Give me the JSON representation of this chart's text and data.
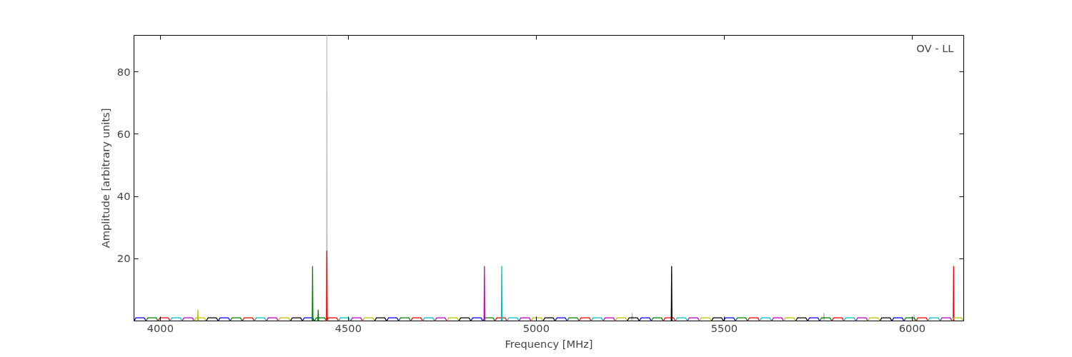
{
  "chart_data": {
    "type": "line",
    "xlabel": "Frequency [MHz]",
    "ylabel": "Amplitude [arbitrary units]",
    "annotations": [
      "OV - LL"
    ],
    "xlim": [
      3930,
      6137
    ],
    "ylim": [
      0,
      91.7
    ],
    "xticks": [
      4000,
      4500,
      5000,
      5500,
      6000
    ],
    "yticks": [
      20,
      40,
      60,
      80
    ],
    "grid": false,
    "line_style": "solid",
    "series": [
      {
        "color": "#c0c0c0",
        "x": [
          4442,
          4443,
          4444,
          null,
          5253,
          5255,
          5257,
          null,
          5763,
          5765,
          5767,
          null,
          6003,
          6005,
          6007
        ],
        "values": [
          0,
          91.7,
          0,
          null,
          0,
          2.5,
          0,
          null,
          0,
          2.5,
          0,
          null,
          0,
          2,
          0
        ]
      },
      {
        "color": "#0000ff",
        "x": [
          3930,
          3935,
          3957,
          3962,
          null,
          4154,
          4159,
          4181,
          4186,
          null,
          4378,
          4383,
          4405,
          4410,
          null,
          4602,
          4607,
          4629,
          4634,
          null,
          4826,
          4831,
          4853,
          4858,
          null,
          5050,
          5055,
          5077,
          5082,
          null,
          5274,
          5279,
          5301,
          5306,
          null,
          5498,
          5503,
          5525,
          5530,
          null,
          5722,
          5727,
          5749,
          5754,
          null,
          5946,
          5951,
          5973,
          5978,
          null
        ],
        "values": [
          0,
          1,
          1,
          0,
          null,
          0,
          1,
          1,
          0,
          null,
          0,
          1,
          1,
          0,
          null,
          0,
          1,
          1,
          0,
          null,
          0,
          1,
          1,
          0,
          null,
          0,
          1,
          1,
          0,
          null,
          0,
          1,
          1,
          0,
          null,
          0,
          1,
          1,
          0,
          null,
          0,
          1,
          1,
          0,
          null,
          0,
          1,
          1,
          0,
          null
        ]
      },
      {
        "color": "#008000",
        "x": [
          3962,
          3967,
          3989,
          3994,
          null,
          4186,
          4191,
          4213,
          4218,
          null,
          4410,
          4415,
          4437,
          4442,
          null,
          4634,
          4639,
          4661,
          4666,
          null,
          4858,
          4863,
          4885,
          4890,
          null,
          5082,
          5087,
          5109,
          5114,
          null,
          5306,
          5311,
          5333,
          5338,
          null,
          5530,
          5535,
          5557,
          5562,
          null,
          5754,
          5759,
          5781,
          5786,
          null,
          5978,
          5983,
          6005,
          6010,
          null,
          4404,
          4405,
          4406,
          null,
          4419,
          4420,
          4421
        ],
        "values": [
          0,
          1,
          1,
          0,
          null,
          0,
          1,
          1,
          0,
          null,
          0,
          1,
          1,
          0,
          null,
          0,
          1,
          1,
          0,
          null,
          0,
          1,
          1,
          0,
          null,
          0,
          1,
          1,
          0,
          null,
          0,
          1,
          1,
          0,
          null,
          0,
          1,
          1,
          0,
          null,
          0,
          1,
          1,
          0,
          null,
          0,
          1,
          1,
          0,
          null,
          0,
          17.5,
          0,
          null,
          0,
          3.5,
          0
        ]
      },
      {
        "color": "#ff0000",
        "x": [
          3994,
          3999,
          4021,
          4026,
          null,
          4218,
          4223,
          4245,
          4250,
          null,
          4442,
          4447,
          4469,
          4474,
          null,
          4666,
          4671,
          4693,
          4698,
          null,
          4890,
          4895,
          4917,
          4922,
          null,
          5114,
          5119,
          5141,
          5146,
          null,
          5338,
          5343,
          5365,
          5370,
          null,
          5562,
          5567,
          5589,
          5594,
          null,
          5786,
          5791,
          5813,
          5818,
          null,
          6010,
          6015,
          6037,
          6042,
          null,
          4442,
          4443,
          4444,
          null,
          6109,
          6110,
          6111
        ],
        "values": [
          0,
          1,
          1,
          0,
          null,
          0,
          1,
          1,
          0,
          null,
          0,
          1,
          1,
          0,
          null,
          0,
          1,
          1,
          0,
          null,
          0,
          1,
          1,
          0,
          null,
          0,
          1,
          1,
          0,
          null,
          0,
          1,
          1,
          0,
          null,
          0,
          1,
          1,
          0,
          null,
          0,
          1,
          1,
          0,
          null,
          0,
          1,
          1,
          0,
          null,
          0,
          22.5,
          0,
          null,
          0,
          17.5,
          0
        ]
      },
      {
        "color": "#00bfbf",
        "x": [
          4026,
          4031,
          4053,
          4058,
          null,
          4250,
          4255,
          4277,
          4282,
          null,
          4474,
          4479,
          4501,
          4506,
          null,
          4698,
          4703,
          4725,
          4730,
          null,
          4922,
          4927,
          4949,
          4954,
          null,
          5146,
          5151,
          5173,
          5178,
          null,
          5370,
          5375,
          5397,
          5402,
          null,
          5594,
          5599,
          5621,
          5626,
          null,
          5818,
          5823,
          5845,
          5850,
          null,
          6042,
          6047,
          6069,
          6074,
          null,
          4907,
          4908,
          4909
        ],
        "values": [
          0,
          1,
          1,
          0,
          null,
          0,
          1,
          1,
          0,
          null,
          0,
          1,
          1,
          0,
          null,
          0,
          1,
          1,
          0,
          null,
          0,
          1,
          1,
          0,
          null,
          0,
          1,
          1,
          0,
          null,
          0,
          1,
          1,
          0,
          null,
          0,
          1,
          1,
          0,
          null,
          0,
          1,
          1,
          0,
          null,
          0,
          1,
          1,
          0,
          null,
          0,
          17.5,
          0
        ]
      },
      {
        "color": "#bf00bf",
        "x": [
          4058,
          4063,
          4085,
          4090,
          null,
          4282,
          4287,
          4309,
          4314,
          null,
          4506,
          4511,
          4533,
          4538,
          null,
          4730,
          4735,
          4757,
          4762,
          null,
          4954,
          4959,
          4981,
          4986,
          null,
          5178,
          5183,
          5205,
          5210,
          null,
          5402,
          5407,
          5429,
          5434,
          null,
          5626,
          5631,
          5653,
          5658,
          null,
          5850,
          5855,
          5877,
          5882,
          null,
          6074,
          6079,
          6101,
          6106,
          null,
          4861,
          4862,
          4863
        ],
        "values": [
          0,
          1,
          1,
          0,
          null,
          0,
          1,
          1,
          0,
          null,
          0,
          1,
          1,
          0,
          null,
          0,
          1,
          1,
          0,
          null,
          0,
          1,
          1,
          0,
          null,
          0,
          1,
          1,
          0,
          null,
          0,
          1,
          1,
          0,
          null,
          0,
          1,
          1,
          0,
          null,
          0,
          1,
          1,
          0,
          null,
          0,
          1,
          1,
          0,
          null,
          0,
          17.5,
          0
        ]
      },
      {
        "color": "#bfbf00",
        "x": [
          4090,
          4095,
          4117,
          4122,
          null,
          4314,
          4319,
          4341,
          4346,
          null,
          4538,
          4543,
          4565,
          4570,
          null,
          4762,
          4767,
          4789,
          4794,
          null,
          4986,
          4991,
          5013,
          5018,
          null,
          5210,
          5215,
          5237,
          5242,
          null,
          5434,
          5439,
          5461,
          5466,
          null,
          5658,
          5663,
          5685,
          5690,
          null,
          5882,
          5887,
          5909,
          5914,
          null,
          6106,
          6111,
          6131,
          6136,
          null,
          4099,
          4100,
          4101
        ],
        "values": [
          0,
          1,
          1,
          0,
          null,
          0,
          1,
          1,
          0,
          null,
          0,
          1,
          1,
          0,
          null,
          0,
          1,
          1,
          0,
          null,
          0,
          1,
          1,
          0,
          null,
          0,
          1,
          1,
          0,
          null,
          0,
          1,
          1,
          0,
          null,
          0,
          1,
          1,
          0,
          null,
          0,
          1,
          1,
          0,
          null,
          0,
          1,
          1,
          0,
          null,
          0,
          3.5,
          0
        ]
      },
      {
        "color": "#000000",
        "x": [
          4122,
          4127,
          4149,
          4154,
          null,
          4346,
          4351,
          4373,
          4378,
          null,
          4570,
          4575,
          4597,
          4602,
          null,
          4794,
          4799,
          4821,
          4826,
          null,
          5018,
          5023,
          5045,
          5050,
          null,
          5242,
          5247,
          5269,
          5274,
          null,
          5466,
          5471,
          5493,
          5498,
          null,
          5690,
          5695,
          5717,
          5722,
          null,
          5914,
          5919,
          5941,
          5946,
          null,
          5359,
          5360,
          5361
        ],
        "values": [
          0,
          1,
          1,
          0,
          null,
          0,
          1,
          1,
          0,
          null,
          0,
          1,
          1,
          0,
          null,
          0,
          1,
          1,
          0,
          null,
          0,
          1,
          1,
          0,
          null,
          0,
          1,
          1,
          0,
          null,
          0,
          1,
          1,
          0,
          null,
          0,
          1,
          1,
          0,
          null,
          0,
          1,
          1,
          0,
          null,
          0,
          17.5,
          0
        ]
      }
    ]
  }
}
